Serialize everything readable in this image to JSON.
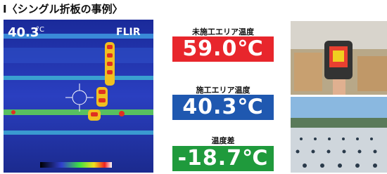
{
  "header": {
    "title": "Ⅰ〈シングル折板の事例〉"
  },
  "thermal_image": {
    "reading": "40.3",
    "unit": "°C",
    "brand": "FLIR"
  },
  "readings": [
    {
      "label": "未施工エリア温度",
      "value": "59.0℃",
      "color": "#e8262c"
    },
    {
      "label": "施工エリア温度",
      "value": "40.3℃",
      "color": "#1f58b0"
    },
    {
      "label": "温度差",
      "value": "-18.7℃",
      "color": "#1f9a3c"
    }
  ]
}
